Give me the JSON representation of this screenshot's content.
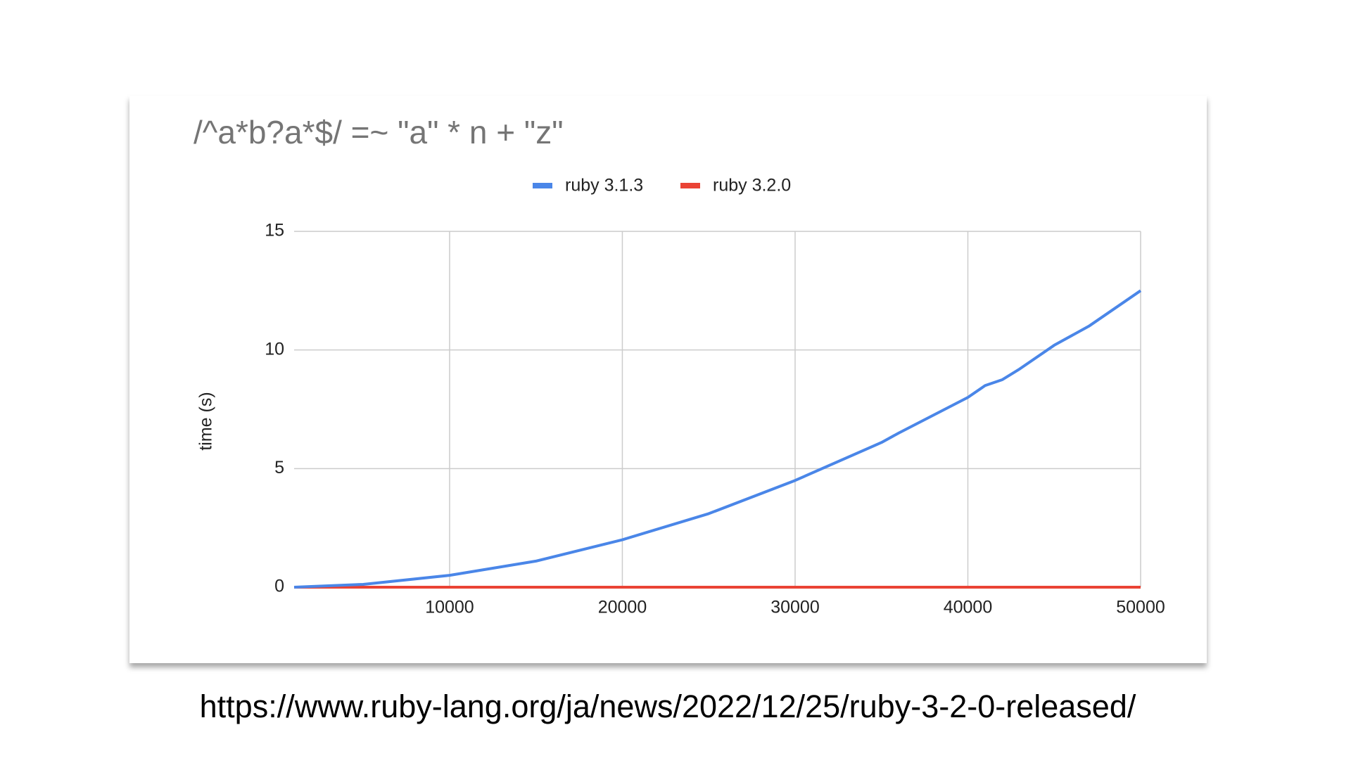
{
  "chart_data": {
    "type": "line",
    "title": "/^a*b?a*$/ =~ \"a\" * n + \"z\"",
    "y_label": "time (s)",
    "x": [
      1000,
      5000,
      10000,
      15000,
      20000,
      25000,
      30000,
      35000,
      36000,
      40000,
      41000,
      42000,
      43000,
      45000,
      47000,
      48000,
      50000
    ],
    "series": [
      {
        "name": "ruby 3.1.3",
        "color": "#4a86e8",
        "values": [
          0,
          0.12,
          0.5,
          1.1,
          2.0,
          3.1,
          4.5,
          6.1,
          6.5,
          8.0,
          8.5,
          8.75,
          9.2,
          10.2,
          11.0,
          11.5,
          12.5
        ]
      },
      {
        "name": "ruby 3.2.0",
        "color": "#ea4335",
        "values": [
          0,
          0,
          0,
          0,
          0,
          0,
          0,
          0,
          0,
          0,
          0,
          0,
          0,
          0,
          0,
          0,
          0
        ]
      }
    ],
    "xlim": [
      1000,
      50000
    ],
    "xticks": [
      10000,
      20000,
      30000,
      40000,
      50000
    ],
    "ylim": [
      0,
      15
    ],
    "yticks": [
      0,
      5,
      10,
      15
    ],
    "grid": true,
    "legend": "top"
  },
  "caption": "https://www.ruby-lang.org/ja/news/2022/12/25/ruby-3-2-0-released/"
}
